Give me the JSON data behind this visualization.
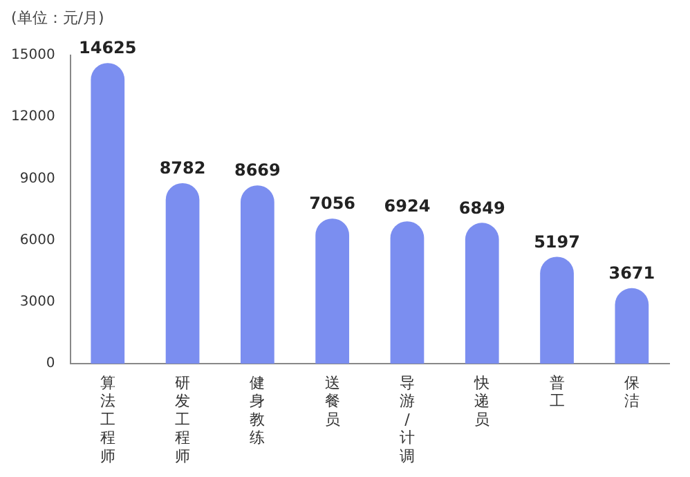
{
  "chart_data": {
    "type": "bar",
    "ylabel": "(单位：元/月)",
    "categories": [
      "算法工程师",
      "研发工程师",
      "健身教练",
      "送餐员",
      "导游/计调",
      "快递员",
      "普工",
      "保洁"
    ],
    "values": [
      14625,
      8782,
      8669,
      7056,
      6924,
      6849,
      5197,
      3671
    ],
    "color": "#7b8ef0",
    "ylim": [
      0,
      15000
    ],
    "yticks": [
      0,
      3000,
      6000,
      9000,
      12000,
      15000
    ],
    "grid": false,
    "legend": false,
    "data_labels": true
  }
}
